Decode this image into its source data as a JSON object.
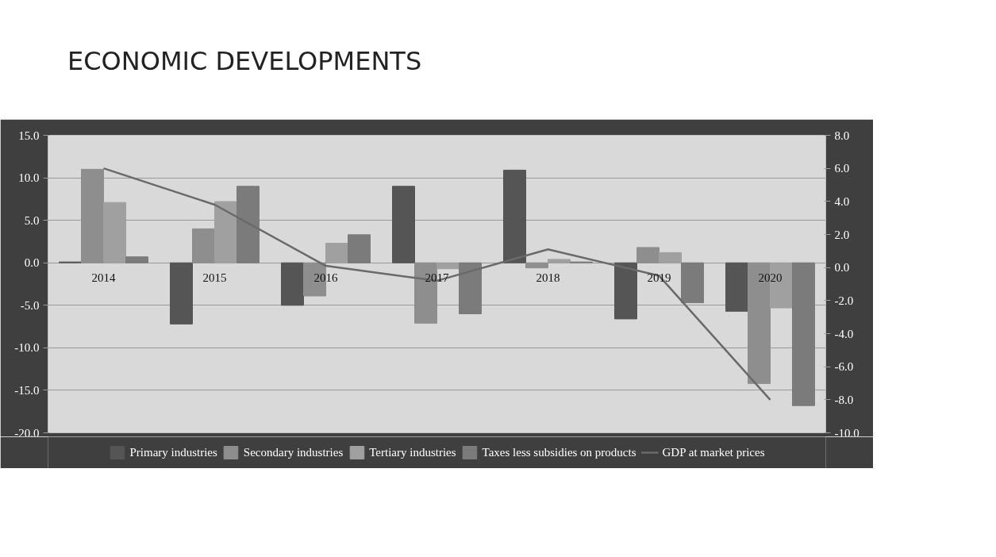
{
  "chart_data": {
    "type": "bar",
    "title": "ECONOMIC DEVELOPMENTS",
    "categories": [
      "2014",
      "2015",
      "2016",
      "2017",
      "2018",
      "2019",
      "2020"
    ],
    "series": [
      {
        "name": "Primary industries",
        "color": "#555555",
        "values": [
          0.1,
          -7.2,
          -5.0,
          9.0,
          10.9,
          -6.6,
          -5.7
        ]
      },
      {
        "name": "Secondary industries",
        "color": "#8e8e8e",
        "values": [
          11.0,
          4.0,
          -3.9,
          -7.1,
          -0.6,
          1.8,
          -14.2
        ]
      },
      {
        "name": "Tertiary industries",
        "color": "#a0a0a0",
        "values": [
          7.1,
          7.2,
          2.3,
          -0.7,
          0.4,
          1.2,
          -5.3
        ]
      },
      {
        "name": "Taxes less subsidies on products",
        "color": "#7b7b7b",
        "values": [
          0.7,
          9.0,
          3.3,
          -6.0,
          0.1,
          -4.7,
          -16.8
        ]
      },
      {
        "name": "GDP at market prices",
        "color": "#6a6a6a",
        "type": "line",
        "axis": "y2",
        "values": [
          6.0,
          3.8,
          0.1,
          -0.8,
          1.1,
          -0.5,
          -8.0
        ]
      }
    ],
    "ylim": [
      -20,
      15
    ],
    "yticks": [
      {
        "value": -20,
        "label": "-20.0"
      },
      {
        "value": -15,
        "label": "-15.0"
      },
      {
        "value": -10,
        "label": "-10.0"
      },
      {
        "value": -5,
        "label": "-5.0"
      },
      {
        "value": 0,
        "label": "0.0"
      },
      {
        "value": 5,
        "label": "5.0"
      },
      {
        "value": 10,
        "label": "10.0"
      },
      {
        "value": 15,
        "label": "15.0"
      }
    ],
    "y2lim": [
      -10,
      8
    ],
    "y2ticks": [
      {
        "value": -10,
        "label": "-10.0"
      },
      {
        "value": -8,
        "label": "-8.0"
      },
      {
        "value": -6,
        "label": "-6.0"
      },
      {
        "value": -4,
        "label": "-4.0"
      },
      {
        "value": -2,
        "label": "-2.0"
      },
      {
        "value": 0,
        "label": "0.0"
      },
      {
        "value": 2,
        "label": "2.0"
      },
      {
        "value": 4,
        "label": "4.0"
      },
      {
        "value": 6,
        "label": "6.0"
      },
      {
        "value": 8,
        "label": "8.0"
      }
    ],
    "grid": "y",
    "legend": "bottom",
    "marker": "none",
    "line_style": "solid"
  }
}
